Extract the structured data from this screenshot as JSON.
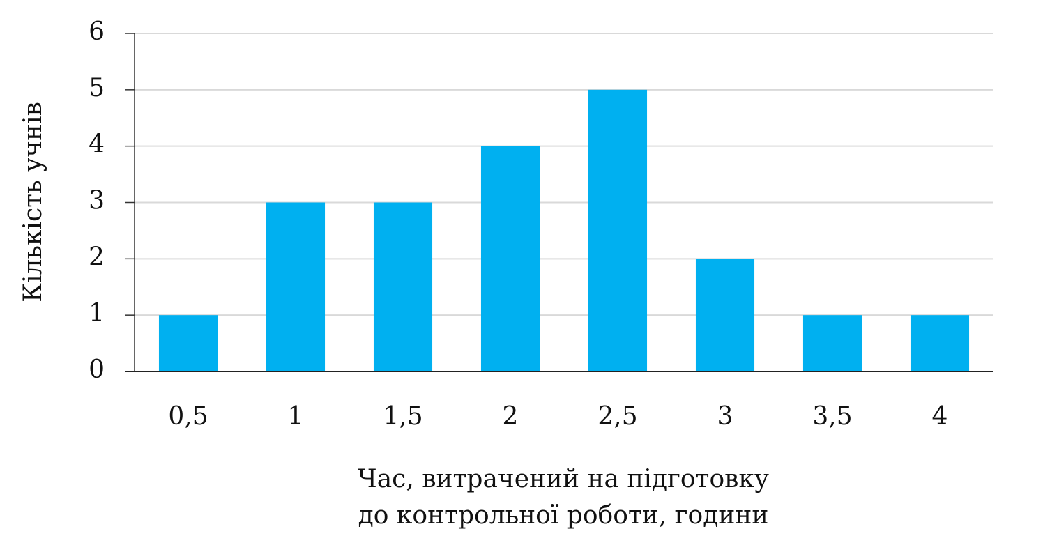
{
  "chart_data": {
    "type": "bar",
    "xlabel": [
      "Час, витрачений на підготовку",
      "до контрольної роботи, години"
    ],
    "ylabel": "Кількість учнів",
    "categories": [
      "0,5",
      "1",
      "1,5",
      "2",
      "2,5",
      "3",
      "3,5",
      "4"
    ],
    "values": [
      1,
      3,
      3,
      4,
      5,
      2,
      1,
      1
    ],
    "color": "#00b0f0",
    "ylim": [
      0,
      6
    ],
    "yticks": [
      0,
      1,
      2,
      3,
      4,
      5,
      6
    ],
    "grid": true
  }
}
